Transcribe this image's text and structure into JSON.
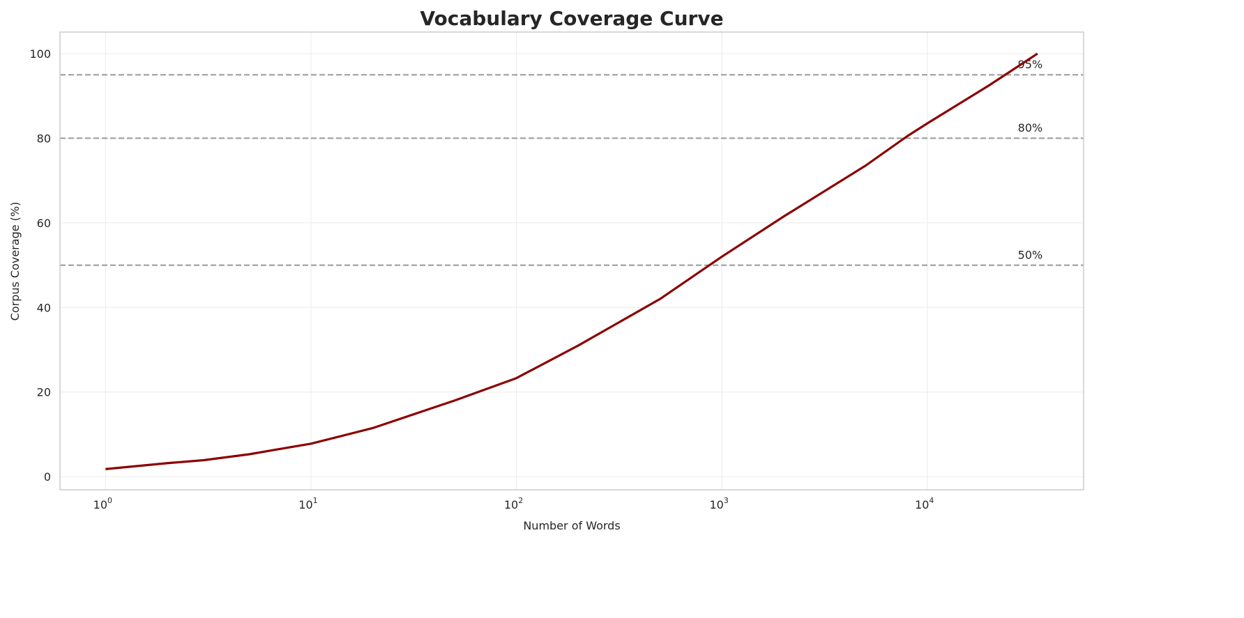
{
  "chart_data": {
    "type": "line",
    "title": "Vocabulary Coverage Curve",
    "xlabel": "Number of Words",
    "ylabel": "Corpus Coverage (%)",
    "xscale": "log",
    "xlim": [
      0.6,
      57700
    ],
    "ylim": [
      -3.1,
      105.1
    ],
    "grid": true,
    "x_ticks": [
      {
        "value": 1,
        "base": "10",
        "exp": "0"
      },
      {
        "value": 10,
        "base": "10",
        "exp": "1"
      },
      {
        "value": 100,
        "base": "10",
        "exp": "2"
      },
      {
        "value": 1000,
        "base": "10",
        "exp": "3"
      },
      {
        "value": 10000,
        "base": "10",
        "exp": "4"
      }
    ],
    "y_ticks": [
      0,
      20,
      40,
      60,
      80,
      100
    ],
    "series": [
      {
        "color": "#8b0000",
        "x": [
          1,
          2,
          3,
          5,
          10,
          20,
          50,
          100,
          200,
          500,
          1000,
          2000,
          5000,
          8000,
          10000,
          20000,
          34400
        ],
        "y": [
          1.8,
          3.2,
          3.9,
          5.3,
          7.8,
          11.5,
          18,
          23.3,
          31,
          42,
          52,
          61.5,
          73.5,
          80.5,
          83.5,
          92.5,
          100
        ]
      }
    ],
    "reference_lines": [
      {
        "y": 95,
        "label": "95%",
        "label_x": 27600,
        "label_y": 97.5
      },
      {
        "y": 80,
        "label": "80%",
        "label_x": 27600,
        "label_y": 82.5
      },
      {
        "y": 50,
        "label": "50%",
        "label_x": 27600,
        "label_y": 52.5
      }
    ],
    "reference_color": "#999999"
  }
}
